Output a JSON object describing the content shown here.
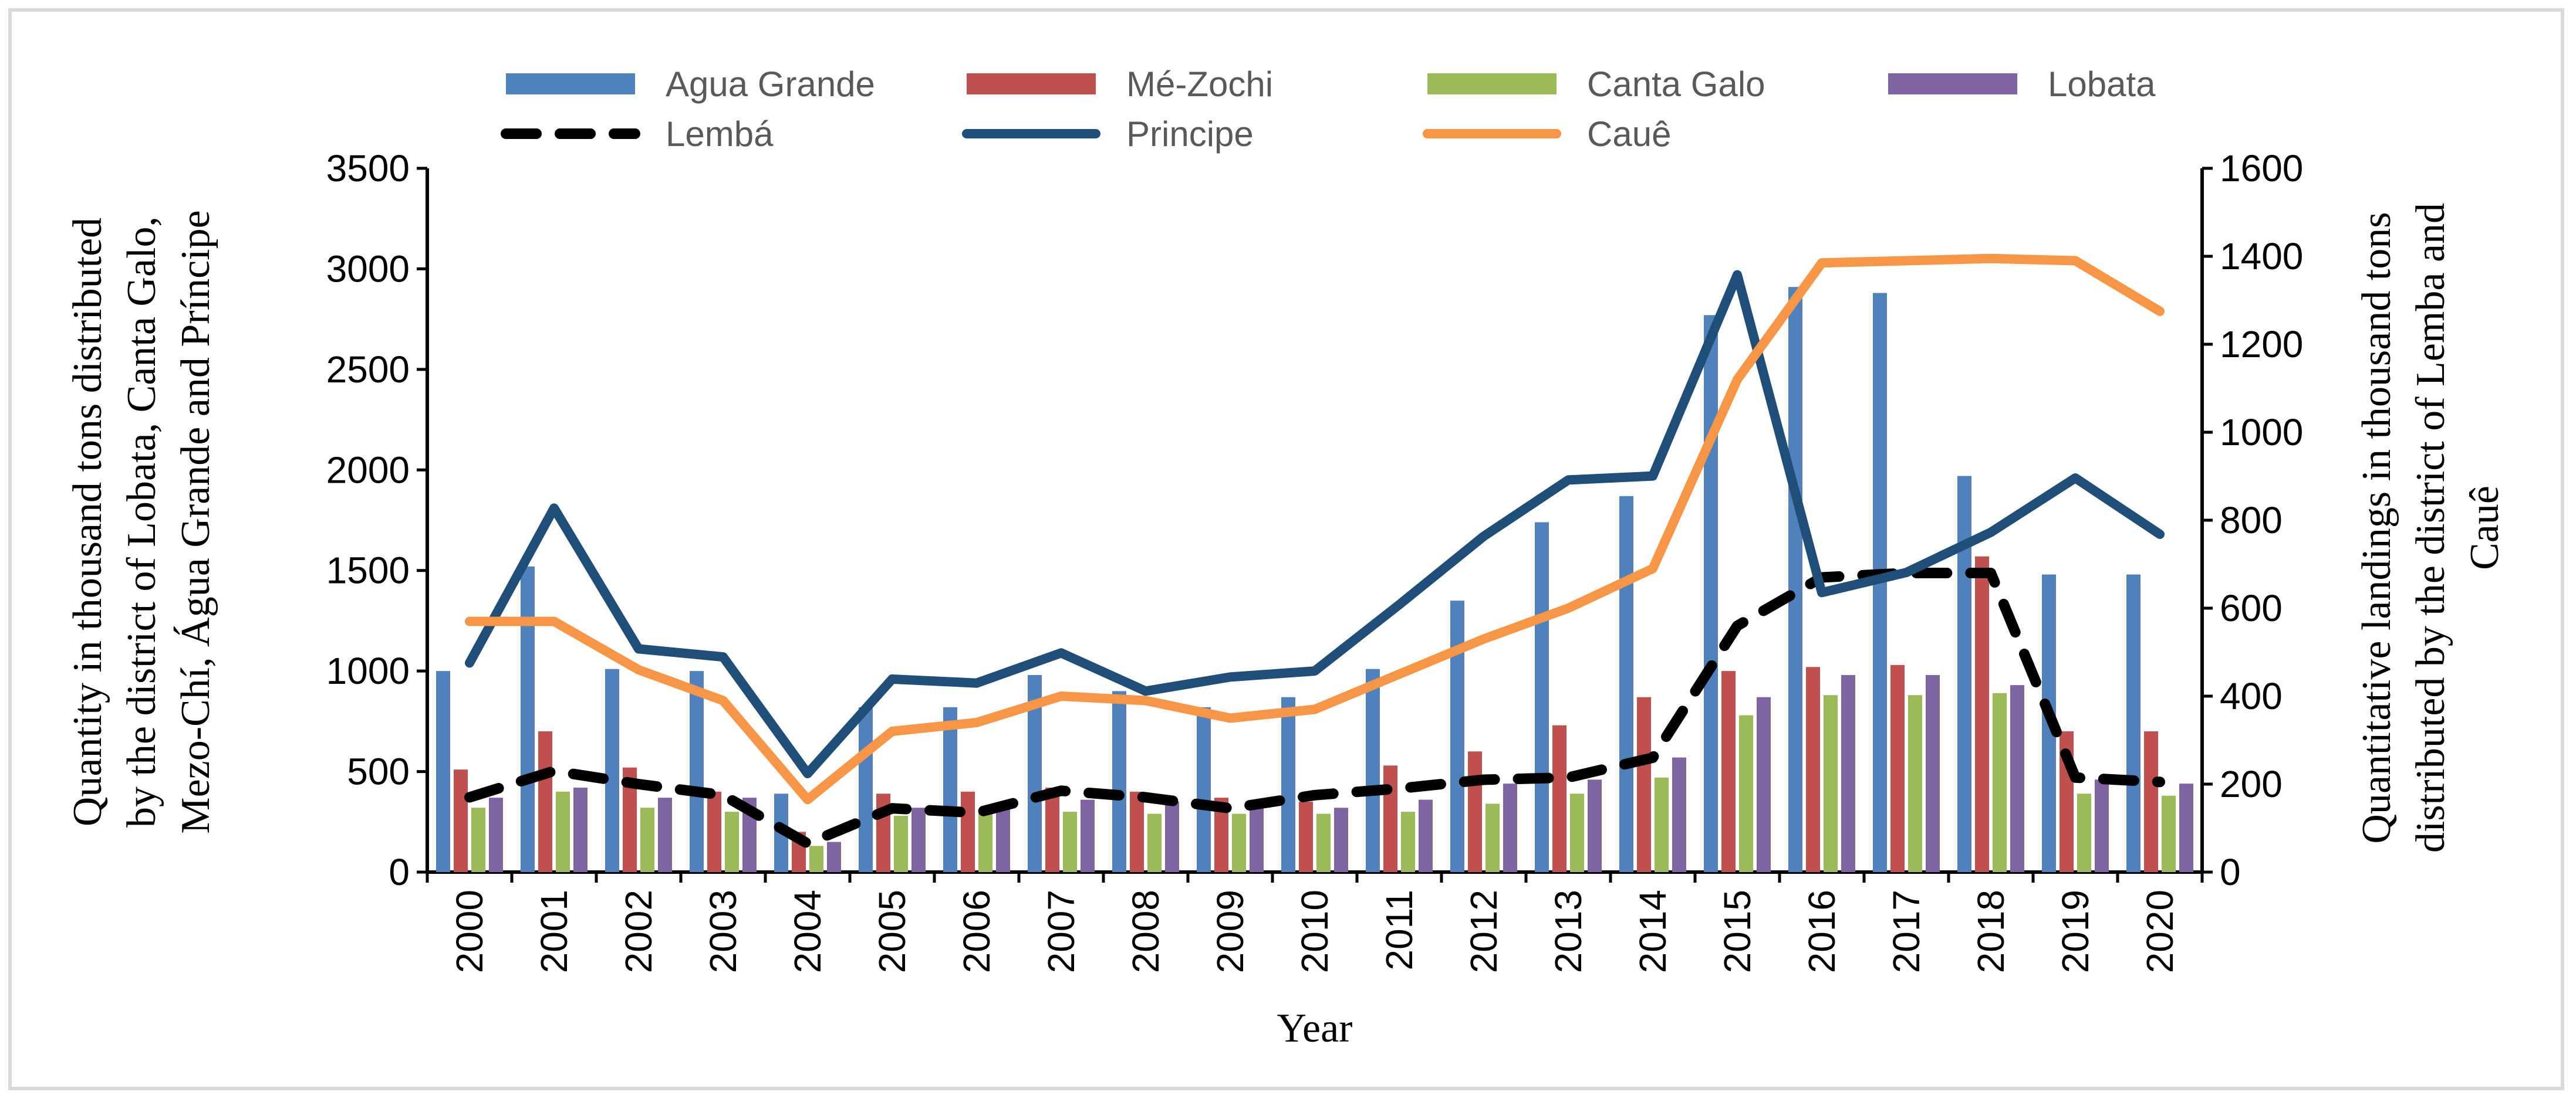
{
  "chart_data": {
    "type": "bar",
    "title": "",
    "xlabel": "Year",
    "ylabel_left": "Quantity in thousand tons distributed by the district of Lobata, Canta Galo, Mezo-Chí, Água Grande and Príncipe",
    "ylabel_left_lines": [
      "Quantity in thousand tons distributed",
      "by the district of Lobata, Canta Galo,",
      "Mezo-Chí, Água Grande and Príncipe"
    ],
    "ylabel_right": "Quantitative landings in thousand tons distributed by the district of Lemba and Cauê",
    "ylabel_right_lines": [
      "Quantitative landings in thousand tons",
      "distributed by the district of Lemba and",
      "Cauê"
    ],
    "ylim_left": [
      0,
      3500
    ],
    "yticks_left": [
      0,
      500,
      1000,
      1500,
      2000,
      2500,
      3000,
      3500
    ],
    "ylim_right": [
      0,
      1600
    ],
    "yticks_right": [
      0,
      200,
      400,
      600,
      800,
      1000,
      1200,
      1400,
      1600
    ],
    "categories": [
      "2000",
      "2001",
      "2002",
      "2003",
      "2004",
      "2005",
      "2006",
      "2007",
      "2008",
      "2009",
      "2010",
      "2011",
      "2012",
      "2013",
      "2014",
      "2015",
      "2016",
      "2017",
      "2018",
      "2019",
      "2020"
    ],
    "legend_position": "top",
    "bar_series": [
      {
        "name": "Agua Grande",
        "color": "#4f81bd",
        "axis": "left",
        "values": [
          1000,
          1520,
          1010,
          1000,
          390,
          820,
          820,
          980,
          900,
          820,
          870,
          1010,
          1350,
          1740,
          1870,
          2770,
          2910,
          2880,
          1970,
          1480,
          1480
        ]
      },
      {
        "name": "Mé-Zochi",
        "color": "#c0504d",
        "axis": "left",
        "values": [
          510,
          700,
          520,
          400,
          200,
          390,
          400,
          420,
          400,
          370,
          350,
          530,
          600,
          730,
          870,
          1000,
          1020,
          1030,
          1570,
          700,
          700
        ]
      },
      {
        "name": "Canta Galo",
        "color": "#9bbb59",
        "axis": "left",
        "values": [
          320,
          400,
          320,
          300,
          130,
          280,
          300,
          300,
          290,
          290,
          290,
          300,
          340,
          390,
          470,
          780,
          880,
          880,
          890,
          390,
          380
        ]
      },
      {
        "name": "Lobata",
        "color": "#8064a2",
        "axis": "left",
        "values": [
          370,
          420,
          370,
          370,
          150,
          320,
          330,
          360,
          350,
          320,
          320,
          360,
          440,
          460,
          570,
          870,
          980,
          980,
          930,
          460,
          440
        ]
      }
    ],
    "line_series": [
      {
        "name": "Lembá",
        "color": "#000000",
        "dash": true,
        "axis": "right",
        "values": [
          170,
          230,
          200,
          175,
          65,
          145,
          135,
          185,
          170,
          145,
          175,
          190,
          210,
          215,
          260,
          560,
          670,
          680,
          680,
          215,
          205
        ]
      },
      {
        "name": "Principe",
        "color": "#1f4e79",
        "dash": false,
        "axis": "left",
        "values": [
          1040,
          1810,
          1110,
          1070,
          490,
          960,
          940,
          1090,
          900,
          970,
          1000,
          1330,
          1670,
          1950,
          1970,
          2970,
          1390,
          1490,
          1690,
          1960,
          1680
        ]
      },
      {
        "name": "Cauê",
        "color": "#f79646",
        "dash": false,
        "axis": "right",
        "values": [
          570,
          570,
          460,
          390,
          165,
          320,
          340,
          400,
          390,
          350,
          370,
          450,
          530,
          600,
          690,
          1120,
          1385,
          1390,
          1395,
          1390,
          1275
        ]
      }
    ],
    "legend_rows": [
      [
        "Agua Grande",
        "Mé-Zochi",
        "Canta Galo",
        "Lobata"
      ],
      [
        "Lembá",
        "Principe",
        "Cauê"
      ]
    ]
  }
}
